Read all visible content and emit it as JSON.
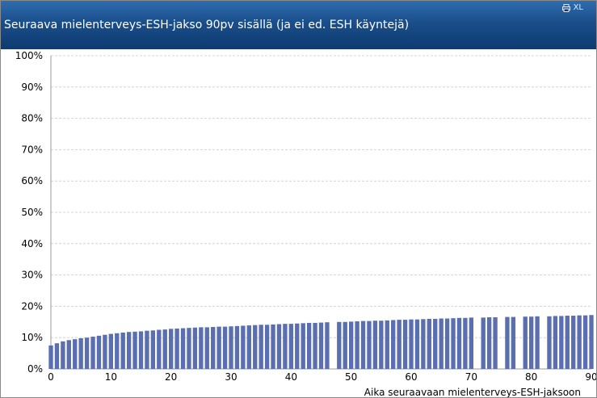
{
  "window": {
    "title": "Seuraava mielenterveys-ESH-jakso 90pv sisällä (ja ei ed. ESH käyntejä)",
    "export_label": "XL"
  },
  "colors": {
    "bar": "#5b6fb0",
    "grid": "#d4d4d4",
    "axis": "#999999",
    "text": "#000000",
    "header_top": "#2f6db0",
    "header_bottom": "#0e3a70"
  },
  "icons": [
    "print-icon"
  ],
  "chart_data": {
    "type": "bar",
    "title": "",
    "xlabel": "Aika seuraavaan mielenterveys-ESH-jaksoon",
    "ylabel": "",
    "xlim": [
      0,
      90
    ],
    "ylim": [
      0,
      100
    ],
    "x_ticks": [
      0,
      10,
      20,
      30,
      40,
      50,
      60,
      70,
      80,
      90
    ],
    "y_ticks": [
      "0%",
      "10%",
      "20%",
      "30%",
      "40%",
      "50%",
      "60%",
      "70%",
      "80%",
      "90%",
      "100%"
    ],
    "grid": true,
    "legend": "none",
    "x": [
      0,
      1,
      2,
      3,
      4,
      5,
      6,
      7,
      8,
      9,
      10,
      11,
      12,
      13,
      14,
      15,
      16,
      17,
      18,
      19,
      20,
      21,
      22,
      23,
      24,
      25,
      26,
      27,
      28,
      29,
      30,
      31,
      32,
      33,
      34,
      35,
      36,
      37,
      38,
      39,
      40,
      41,
      42,
      43,
      44,
      45,
      46,
      48,
      49,
      50,
      51,
      52,
      53,
      54,
      55,
      56,
      57,
      58,
      59,
      60,
      61,
      62,
      63,
      64,
      65,
      66,
      67,
      68,
      69,
      70,
      72,
      73,
      74,
      76,
      77,
      79,
      80,
      81,
      83,
      84,
      85,
      86,
      87,
      88,
      89,
      90
    ],
    "values": [
      7.5,
      8.2,
      8.8,
      9.2,
      9.5,
      9.8,
      10.0,
      10.3,
      10.6,
      10.9,
      11.2,
      11.4,
      11.6,
      11.8,
      11.9,
      12.0,
      12.2,
      12.3,
      12.5,
      12.6,
      12.8,
      12.9,
      13.0,
      13.1,
      13.2,
      13.3,
      13.3,
      13.4,
      13.5,
      13.5,
      13.6,
      13.7,
      13.8,
      13.9,
      14.0,
      14.1,
      14.1,
      14.2,
      14.3,
      14.4,
      14.4,
      14.5,
      14.6,
      14.7,
      14.7,
      14.8,
      14.9,
      15.0,
      15.0,
      15.1,
      15.2,
      15.3,
      15.3,
      15.4,
      15.4,
      15.5,
      15.6,
      15.7,
      15.7,
      15.8,
      15.8,
      15.9,
      16.0,
      16.0,
      16.1,
      16.1,
      16.2,
      16.3,
      16.3,
      16.4,
      16.4,
      16.5,
      16.5,
      16.6,
      16.6,
      16.7,
      16.7,
      16.8,
      16.8,
      16.9,
      16.9,
      17.0,
      17.0,
      17.1,
      17.1,
      17.2
    ]
  }
}
